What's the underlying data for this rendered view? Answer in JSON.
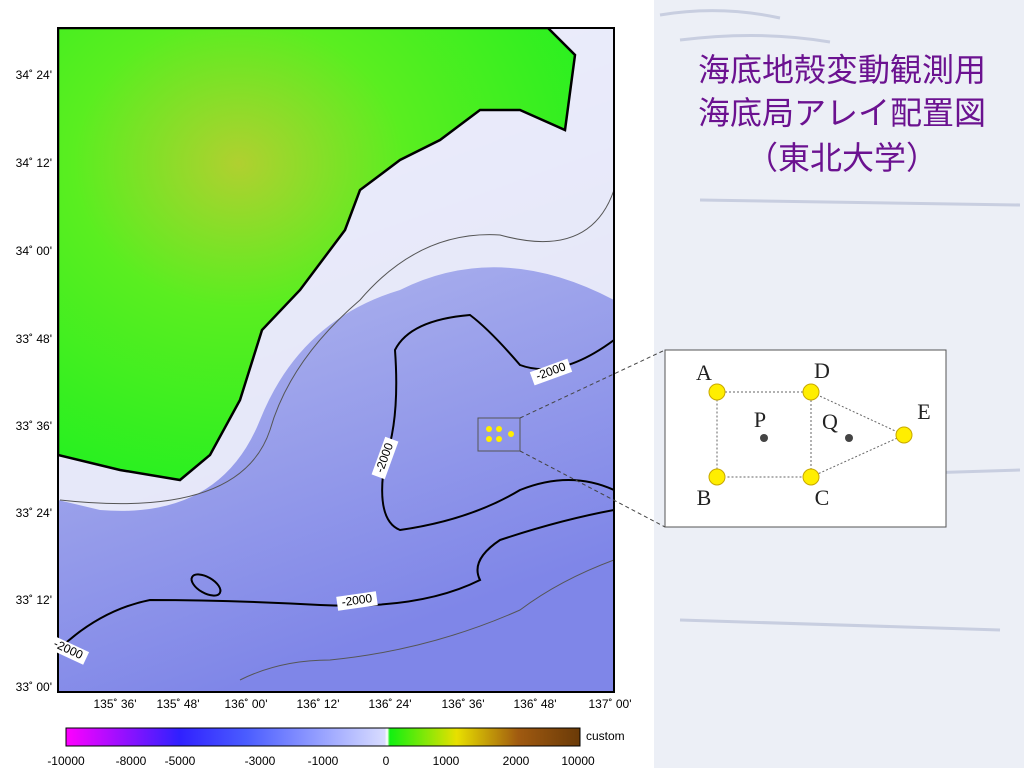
{
  "title": [
    "海底地殻変動観測用",
    "海底局アレイ配置図",
    "（東北大学）"
  ],
  "map": {
    "lat_labels": [
      "34˚ 24'",
      "34˚ 12'",
      "34˚ 00'",
      "33˚ 48'",
      "33˚ 36'",
      "33˚ 24'",
      "33˚ 12'",
      "33˚ 00'"
    ],
    "lon_labels": [
      "135˚ 36'",
      "135˚ 48'",
      "136˚ 00'",
      "136˚ 12'",
      "136˚ 24'",
      "136˚ 36'",
      "136˚ 48'",
      "137˚ 00'"
    ],
    "contour_labels": [
      "-2000",
      "-2000",
      "-2000",
      "-2000"
    ]
  },
  "colorbar": {
    "label": "custom",
    "ticks": [
      "-10000",
      "-8000",
      "-5000",
      "-3000",
      "-1000",
      "0",
      "1000",
      "2000",
      "10000"
    ]
  },
  "array": {
    "stations": [
      "A",
      "B",
      "C",
      "D",
      "E"
    ],
    "points": [
      "P",
      "Q"
    ]
  }
}
